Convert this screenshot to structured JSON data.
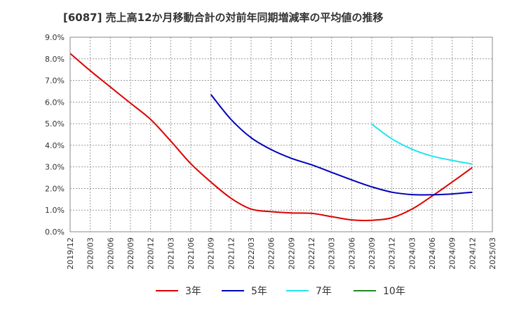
{
  "chart_data": {
    "type": "line",
    "title": "[6087]  売上高12か月移動合計の対前年同期増減率の平均値の推移",
    "xlabel": "",
    "ylabel": "",
    "x_ticks": [
      "2019/12",
      "2020/03",
      "2020/06",
      "2020/09",
      "2020/12",
      "2021/03",
      "2021/06",
      "2021/09",
      "2021/12",
      "2022/03",
      "2022/06",
      "2022/09",
      "2022/12",
      "2023/03",
      "2023/06",
      "2023/09",
      "2023/12",
      "2024/03",
      "2024/06",
      "2024/09",
      "2024/12",
      "2025/03"
    ],
    "y_ticks": [
      "0.0%",
      "1.0%",
      "2.0%",
      "3.0%",
      "4.0%",
      "5.0%",
      "6.0%",
      "7.0%",
      "8.0%",
      "9.0%"
    ],
    "ylim": [
      0,
      9
    ],
    "grid": true,
    "legend_position": "bottom",
    "series": [
      {
        "name": "3年",
        "color": "#dd0000",
        "x": [
          "2019/12",
          "2020/03",
          "2020/06",
          "2020/09",
          "2020/12",
          "2021/03",
          "2021/06",
          "2021/09",
          "2021/12",
          "2022/03",
          "2022/06",
          "2022/09",
          "2022/12",
          "2023/03",
          "2023/06",
          "2023/09",
          "2023/12",
          "2024/03",
          "2024/06",
          "2024/09",
          "2024/12"
        ],
        "values": [
          8.25,
          7.45,
          6.7,
          5.95,
          5.2,
          4.2,
          3.15,
          2.3,
          1.55,
          1.05,
          0.93,
          0.87,
          0.85,
          0.7,
          0.55,
          0.53,
          0.65,
          1.05,
          1.65,
          2.3,
          2.97
        ]
      },
      {
        "name": "5年",
        "color": "#0000bb",
        "x": [
          "2021/09",
          "2021/12",
          "2022/03",
          "2022/06",
          "2022/09",
          "2022/12",
          "2023/03",
          "2023/06",
          "2023/09",
          "2023/12",
          "2024/03",
          "2024/06",
          "2024/09",
          "2024/12"
        ],
        "values": [
          6.35,
          5.2,
          4.35,
          3.8,
          3.4,
          3.1,
          2.75,
          2.4,
          2.08,
          1.83,
          1.72,
          1.71,
          1.75,
          1.83
        ]
      },
      {
        "name": "7年",
        "color": "#22e5ee",
        "x": [
          "2023/09",
          "2023/12",
          "2024/03",
          "2024/06",
          "2024/09",
          "2024/12"
        ],
        "values": [
          4.98,
          4.3,
          3.82,
          3.5,
          3.3,
          3.13
        ]
      },
      {
        "name": "10年",
        "color": "#228822",
        "x": [],
        "values": []
      }
    ]
  }
}
